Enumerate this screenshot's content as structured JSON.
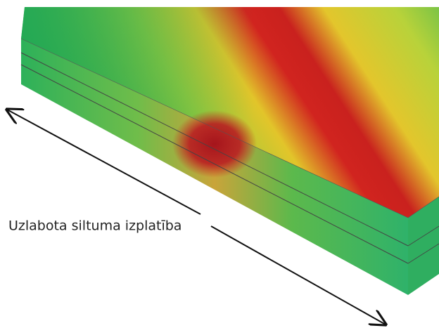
{
  "label": "Uzlabota siltuma izplatība"
}
